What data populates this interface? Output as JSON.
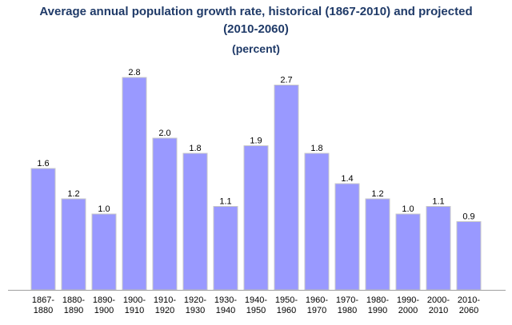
{
  "chart_data": {
    "type": "bar",
    "title": "Average annual population growth rate, historical (1867-2010) and projected (2010-2060)",
    "title_line1": "Average annual population growth rate, historical (1867-2010) and projected",
    "title_line2": "(2010-2060)",
    "subtitle": "(percent)",
    "categories": [
      "1867-1880",
      "1880-1890",
      "1890-1900",
      "1900-1910",
      "1910-1920",
      "1920-1930",
      "1930-1940",
      "1940-1950",
      "1950-1960",
      "1960-1970",
      "1970-1980",
      "1980-1990",
      "1990-2000",
      "2000-2010",
      "2010-2060"
    ],
    "values": [
      1.6,
      1.2,
      1.0,
      2.8,
      2.0,
      1.8,
      1.1,
      1.9,
      2.7,
      1.8,
      1.4,
      1.2,
      1.0,
      1.1,
      0.9
    ],
    "data_labels": [
      "1.6",
      "1.2",
      "1.0",
      "2.8",
      "2.0",
      "1.8",
      "1.1",
      "1.9",
      "2.7",
      "1.8",
      "1.4",
      "1.2",
      "1.0",
      "1.1",
      "0.9"
    ],
    "xlabel": "",
    "ylabel": "",
    "ylim": [
      0,
      2.8
    ],
    "grid": false,
    "bar_color": "#9999ff",
    "title_color": "#1f3a68"
  }
}
